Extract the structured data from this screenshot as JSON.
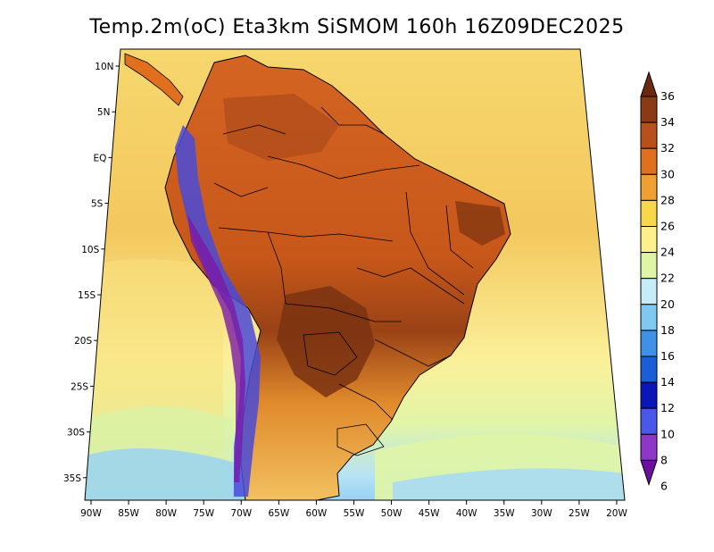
{
  "title": "Temp.2m(oC) Eta3km SiSMOM 160h 16Z09DEC2025",
  "lat_labels": [
    "10N",
    "5N",
    "EQ",
    "5S",
    "10S",
    "15S",
    "20S",
    "25S",
    "30S",
    "35S"
  ],
  "lon_labels": [
    "90W",
    "85W",
    "80W",
    "75W",
    "70W",
    "65W",
    "60W",
    "55W",
    "50W",
    "45W",
    "40W",
    "35W",
    "30W",
    "25W",
    "20W"
  ],
  "colorbar": {
    "labels": [
      "36",
      "34",
      "32",
      "30",
      "28",
      "26",
      "24",
      "22",
      "20",
      "18",
      "16",
      "14",
      "12",
      "10",
      "8",
      "6"
    ],
    "colors": [
      "#6b2a0f",
      "#8a3a14",
      "#b8501c",
      "#e0701e",
      "#f0a030",
      "#f8d848",
      "#fbf08a",
      "#dff5a5",
      "#c6ecf7",
      "#7fc8f0",
      "#3d92e8",
      "#1a5fd6",
      "#0a16b8",
      "#4a58e8",
      "#8e36c8",
      "#6a0f9e"
    ]
  },
  "map_colors": {
    "ocean_tropical": "#f3c85e",
    "ocean_warm": "#f6de78",
    "ocean_mid": "#fbf19c",
    "ocean_cool": "#dff5a5",
    "ocean_cold": "#a8dcf2",
    "land_hot": "#c8581a",
    "land_very_hot": "#8e3a14",
    "land_warm": "#e0701e",
    "land_mild": "#f0a030",
    "andes_cold": "#4a4ad8",
    "andes_freeze": "#7a1aa8"
  }
}
